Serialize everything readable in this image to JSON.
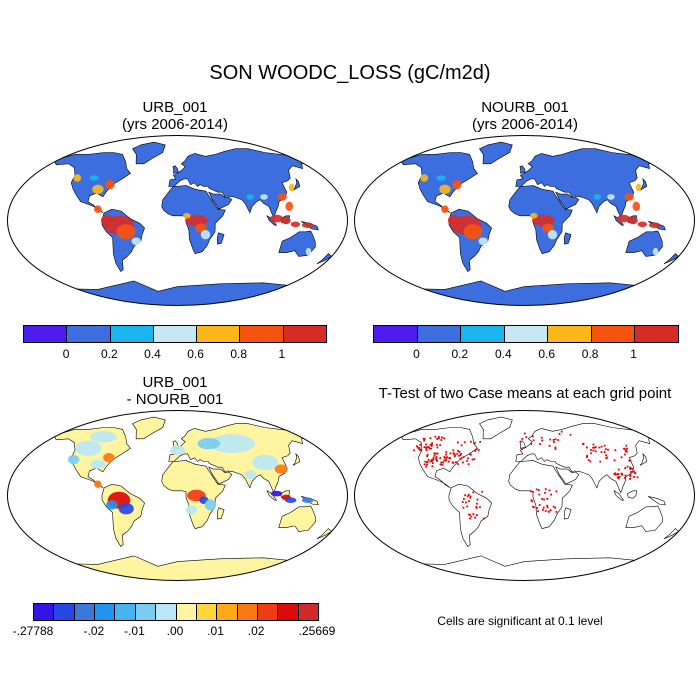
{
  "main_title": "SON WOODC_LOSS (gC/m2d)",
  "panels": {
    "urb": {
      "title": "URB_001",
      "subtitle": "(yrs 2006-2014)"
    },
    "nourb": {
      "title": "NOURB_001",
      "subtitle": "(yrs 2006-2014)"
    },
    "diff": {
      "title": "URB_001",
      "subtitle": "- NOURB_001"
    },
    "ttest": {
      "title": "T-Test of two Case means at each grid point"
    }
  },
  "colorbar_main": {
    "colors": [
      "#4b1cf0",
      "#3c6ee0",
      "#1ab4ef",
      "#c6e8f4",
      "#fbb61a",
      "#f6520f",
      "#d72c26"
    ],
    "labels": [
      "0",
      "0.2",
      "0.4",
      "0.6",
      "0.8",
      "1"
    ]
  },
  "colorbar_diff": {
    "colors": [
      "#3214e6",
      "#2846e6",
      "#3c78dc",
      "#1e96f0",
      "#46b4f0",
      "#78cdf0",
      "#bbe6f5",
      "#fff5a0",
      "#ffd73c",
      "#ffaa14",
      "#fa7814",
      "#f03c14",
      "#dc0a0a",
      "#d22828"
    ],
    "labels": [
      "-.27788",
      "-.02",
      "-.01",
      ".00",
      ".01",
      ".02",
      ".25669"
    ]
  },
  "significance_note": "Cells are significant at 0.1 level",
  "colors": {
    "ocean": "#ffffff",
    "land_urb": "#3c6ee0",
    "land_diff": "#fff5a0",
    "significant": "#e60000",
    "coast": "#000000"
  }
}
